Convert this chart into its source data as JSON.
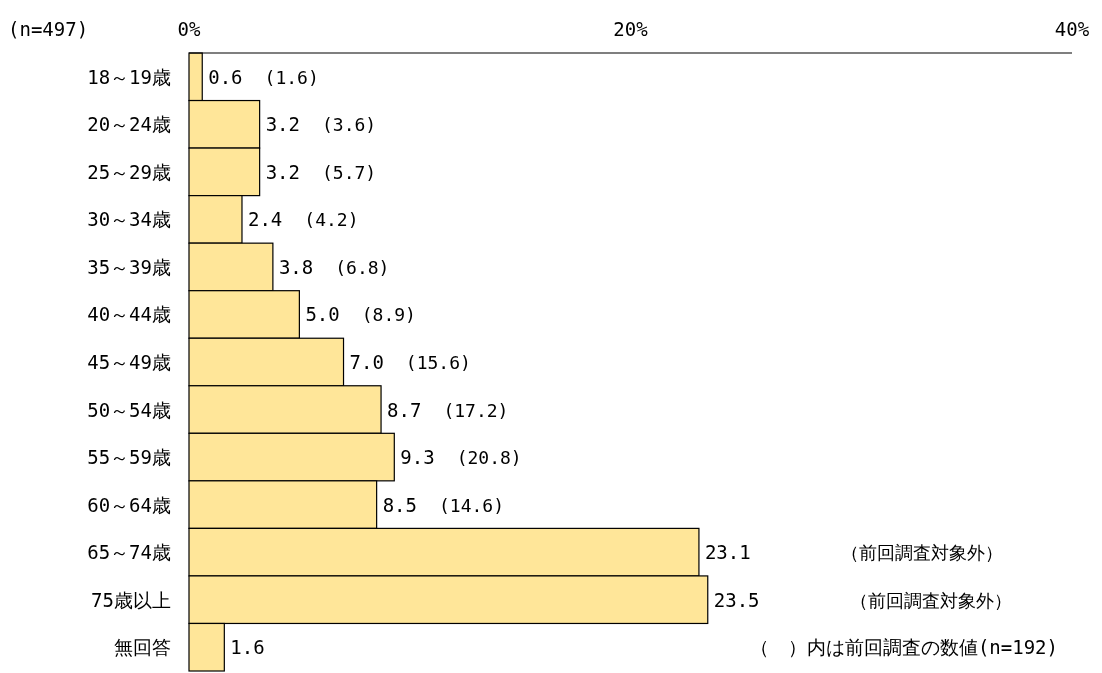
{
  "chart_data": {
    "type": "bar",
    "orientation": "horizontal",
    "categories": [
      "18～19歳",
      "20～24歳",
      "25～29歳",
      "30～34歳",
      "35～39歳",
      "40～44歳",
      "45～49歳",
      "50～54歳",
      "55～59歳",
      "60～64歳",
      "65～74歳",
      "75歳以上",
      "無回答"
    ],
    "values": [
      0.6,
      3.2,
      3.2,
      2.4,
      3.8,
      5.0,
      7.0,
      8.7,
      9.3,
      8.5,
      23.1,
      23.5,
      1.6
    ],
    "value_labels": [
      "0.6",
      "3.2",
      "3.2",
      "2.4",
      "3.8",
      "5.0",
      "7.0",
      "8.7",
      "9.3",
      "8.5",
      "23.1",
      "23.5",
      "1.6"
    ],
    "color": "#ffe699",
    "xlim": [
      0,
      40
    ],
    "xticks": [
      {
        "value": 0,
        "label": "0%"
      },
      {
        "value": 20,
        "label": "20%"
      },
      {
        "value": 40,
        "label": "40%"
      }
    ],
    "annotations": [
      "(n=497)",
      "(1.6)",
      "(3.6)",
      "(5.7)",
      "(4.2)",
      "(6.8)",
      "(8.9)",
      "(15.6)",
      "(17.2)",
      "(20.8)",
      "(14.6)",
      "（前回調査対象外）",
      "（前回調査対象外）",
      "（　）内は前回調査の数値(n=192)"
    ]
  }
}
